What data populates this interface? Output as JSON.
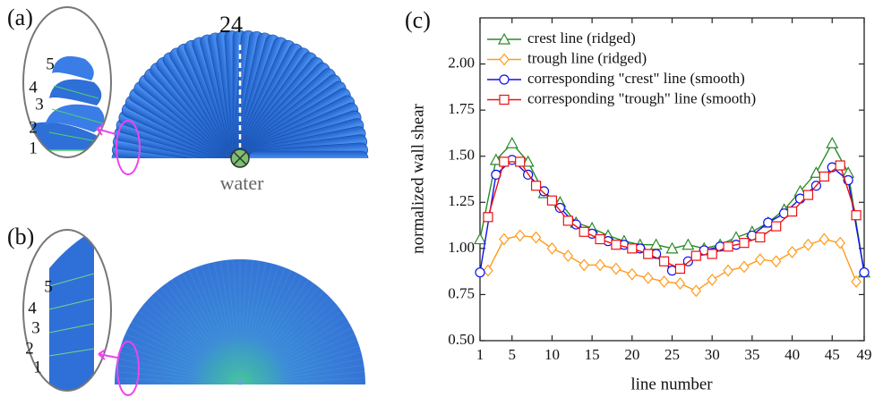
{
  "panels": {
    "a": {
      "label": "(a)",
      "top_line": "24",
      "inlet": "water",
      "lines": [
        "1",
        "2",
        "3",
        "4",
        "5"
      ]
    },
    "b": {
      "label": "(b)",
      "lines": [
        "1",
        "2",
        "3",
        "4",
        "5"
      ]
    }
  },
  "chart_data": {
    "type": "line",
    "panel_label": "(c)",
    "x_label": "line number",
    "y_label": "normalized wall shear",
    "xlim": [
      1,
      49
    ],
    "xticks": [
      1,
      5,
      10,
      15,
      20,
      25,
      30,
      35,
      40,
      45,
      49
    ],
    "ylim": [
      0.5,
      2.25
    ],
    "yticks": [
      {
        "value": 0.5,
        "label": "0.50"
      },
      {
        "value": 0.75,
        "label": "0.75"
      },
      {
        "value": 1,
        "label": "1.00"
      },
      {
        "value": 1.25,
        "label": "1.25"
      },
      {
        "value": 1.5,
        "label": "1.50"
      },
      {
        "value": 1.75,
        "label": "1.75"
      },
      {
        "value": 2,
        "label": "2.00"
      }
    ],
    "grid": false,
    "legend": "top-left",
    "series": [
      {
        "name": "crest line (ridged)",
        "color": "#2a8a2a",
        "marker": "triangle",
        "x": [
          1,
          3,
          5,
          7,
          9,
          11,
          13,
          15,
          17,
          19,
          21,
          23,
          25,
          27,
          29,
          31,
          33,
          35,
          37,
          39,
          41,
          43,
          45,
          47,
          49
        ],
        "values": [
          1.05,
          1.48,
          1.57,
          1.47,
          1.3,
          1.25,
          1.14,
          1.11,
          1.07,
          1.04,
          1.02,
          1.02,
          1.0,
          1.02,
          1.0,
          1.02,
          1.06,
          1.09,
          1.14,
          1.21,
          1.31,
          1.41,
          1.57,
          1.41,
          0.87
        ]
      },
      {
        "name": "trough line (ridged)",
        "color": "#ff9a1a",
        "marker": "diamond",
        "x": [
          2,
          4,
          6,
          8,
          10,
          12,
          14,
          16,
          18,
          20,
          22,
          24,
          26,
          28,
          30,
          32,
          34,
          36,
          38,
          40,
          42,
          44,
          46,
          48
        ],
        "values": [
          0.88,
          1.05,
          1.07,
          1.06,
          1.0,
          0.96,
          0.91,
          0.91,
          0.89,
          0.86,
          0.84,
          0.82,
          0.81,
          0.77,
          0.83,
          0.88,
          0.9,
          0.94,
          0.93,
          0.98,
          1.02,
          1.05,
          1.03,
          0.82
        ]
      },
      {
        "name": "corresponding \"crest\" line (smooth)",
        "color": "#1010ee",
        "marker": "circle",
        "x": [
          1,
          3,
          5,
          7,
          9,
          11,
          13,
          15,
          17,
          19,
          21,
          23,
          25,
          27,
          29,
          31,
          33,
          35,
          37,
          39,
          41,
          43,
          45,
          47,
          49
        ],
        "values": [
          0.87,
          1.4,
          1.48,
          1.4,
          1.31,
          1.22,
          1.13,
          1.08,
          1.04,
          1.02,
          1.0,
          0.97,
          0.88,
          0.93,
          0.99,
          1.01,
          1.02,
          1.07,
          1.14,
          1.19,
          1.27,
          1.34,
          1.44,
          1.37,
          0.87
        ]
      },
      {
        "name": "corresponding \"trough\" line (smooth)",
        "color": "#ee1111",
        "marker": "square",
        "x": [
          2,
          4,
          6,
          8,
          10,
          12,
          14,
          16,
          18,
          20,
          22,
          24,
          26,
          28,
          30,
          32,
          34,
          36,
          38,
          40,
          42,
          44,
          46,
          48
        ],
        "values": [
          1.17,
          1.47,
          1.47,
          1.34,
          1.26,
          1.15,
          1.09,
          1.05,
          1.02,
          1.0,
          0.97,
          0.93,
          0.89,
          0.96,
          0.97,
          1.01,
          1.03,
          1.06,
          1.12,
          1.2,
          1.29,
          1.39,
          1.45,
          1.18
        ]
      }
    ]
  }
}
